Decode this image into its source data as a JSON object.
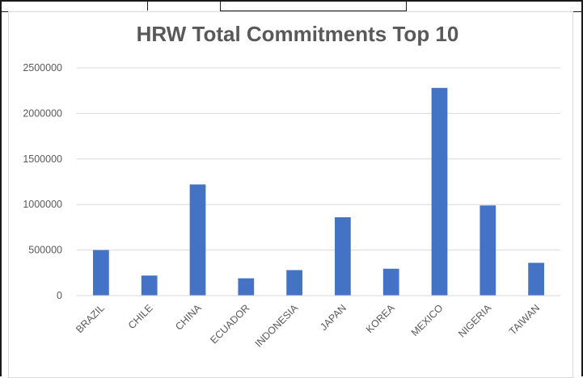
{
  "chart_data": {
    "type": "bar",
    "title": "HRW Total Commitments Top 10",
    "xlabel": "",
    "ylabel": "",
    "categories": [
      "BRAZIL",
      "CHILE",
      "CHINA",
      "ECUADOR",
      "INDONESIA",
      "JAPAN",
      "KOREA",
      "MEXICO",
      "NIGERIA",
      "TAIWAN"
    ],
    "values": [
      500000,
      220000,
      1220000,
      190000,
      280000,
      860000,
      295000,
      2280000,
      990000,
      360000
    ],
    "ylim": [
      0,
      2500000
    ],
    "yticks": [
      "0",
      "500000",
      "1000000",
      "1500000",
      "2000000",
      "2500000"
    ],
    "grid": "horizontal",
    "legend": "none",
    "bar_color": "#4472c4",
    "grid_color": "#d9d9d9"
  }
}
